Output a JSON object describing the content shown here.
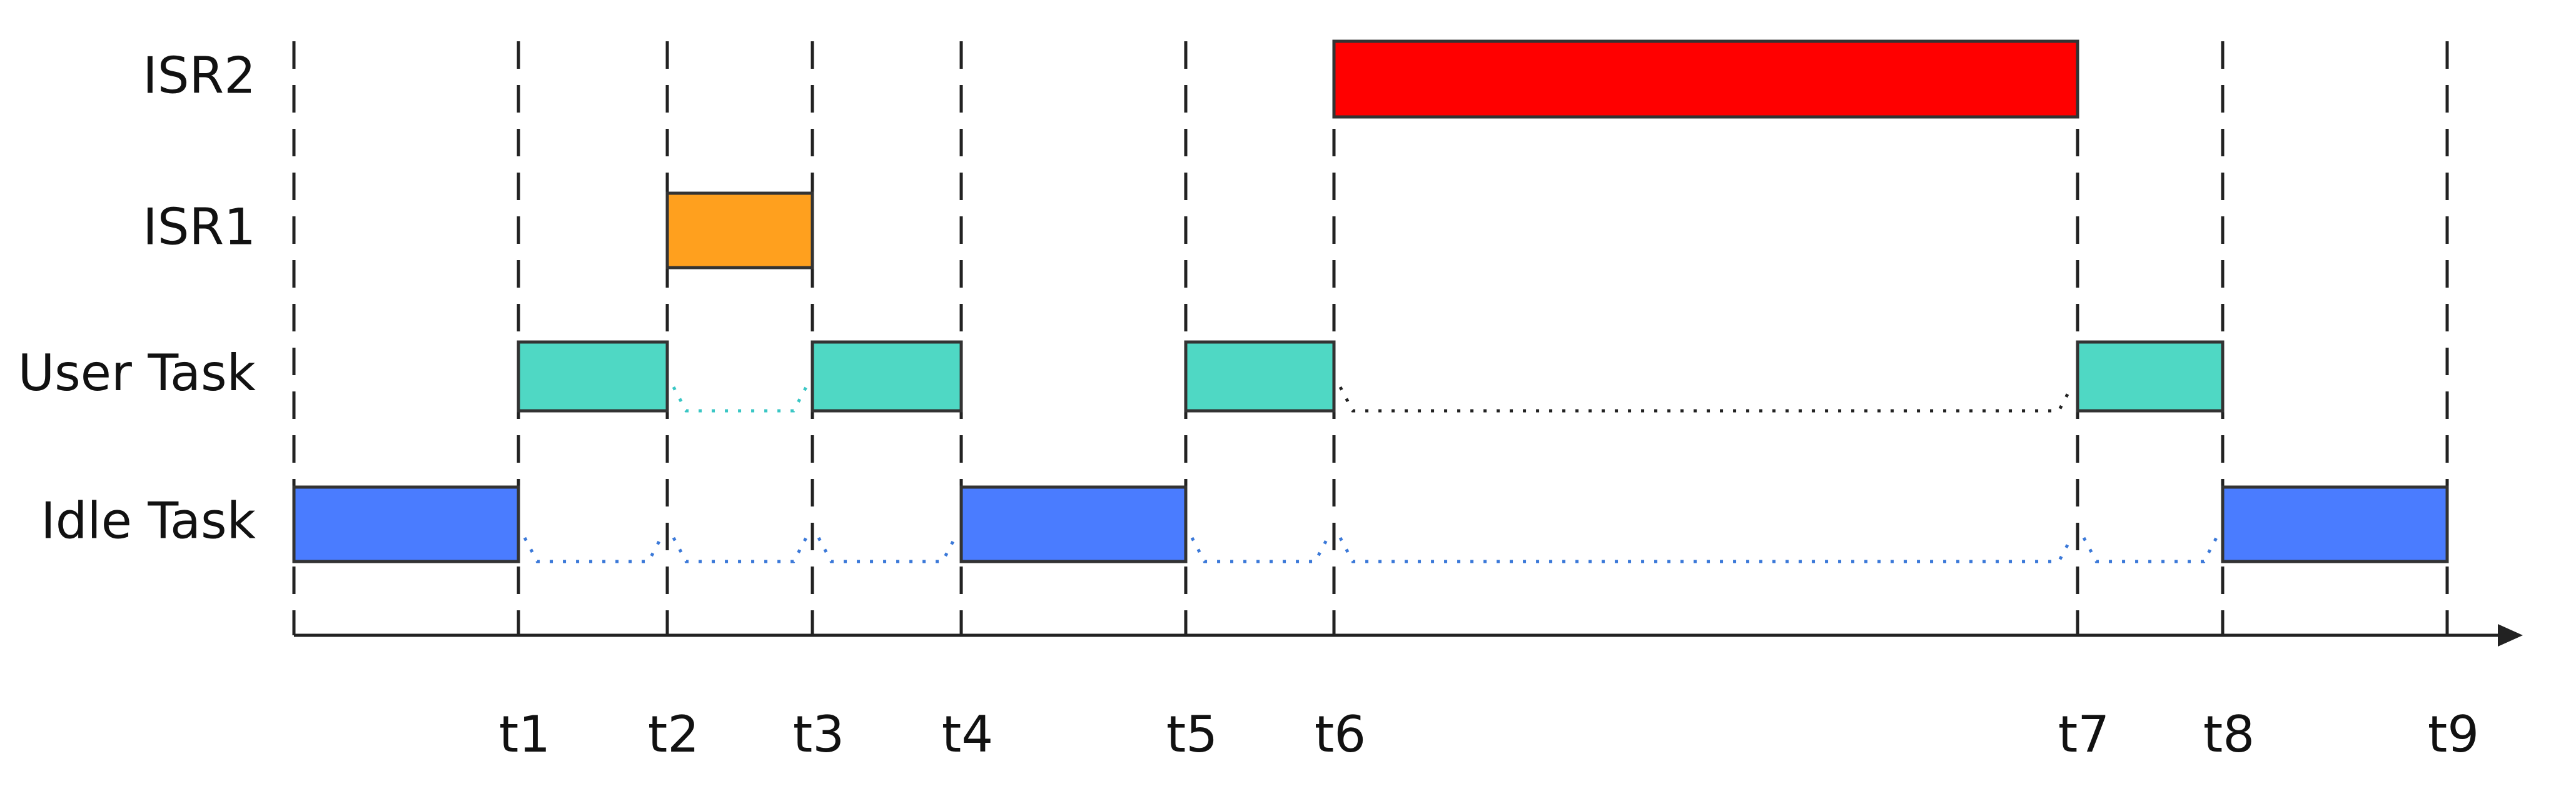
{
  "rows": [
    {
      "label": "ISR2"
    },
    {
      "label": "ISR1"
    },
    {
      "label": "User Task"
    },
    {
      "label": "Idle Task"
    }
  ],
  "time_labels": [
    "t1",
    "t2",
    "t3",
    "t4",
    "t5",
    "t6",
    "t7",
    "t8",
    "t9"
  ]
}
